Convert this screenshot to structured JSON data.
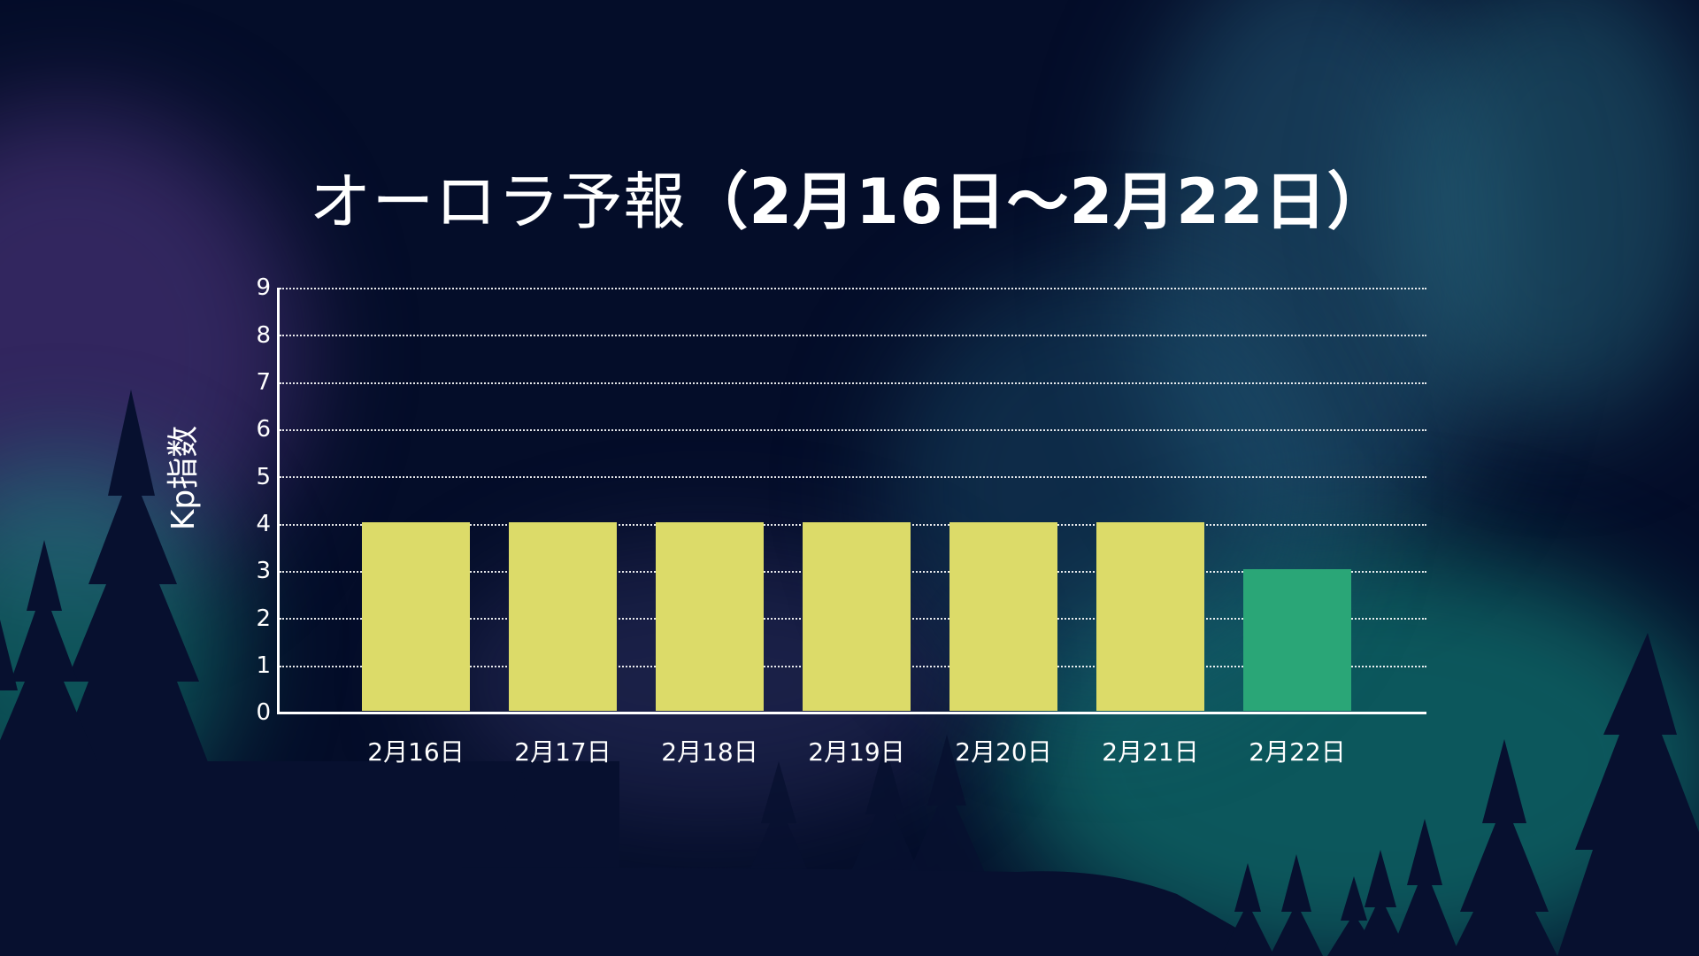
{
  "title": {
    "prefix": "オーロラ予報",
    "range": "（2月16日〜2月22日）"
  },
  "colors": {
    "background": "#040d29",
    "bar_normal": "#dcdb69",
    "bar_low": "#2aa677",
    "axis": "#ffffff"
  },
  "chart_data": {
    "type": "bar",
    "title": "オーロラ予報（2月16日〜2月22日）",
    "xlabel": "",
    "ylabel": "Kp指数",
    "categories": [
      "2月16日",
      "2月17日",
      "2月18日",
      "2月19日",
      "2月20日",
      "2月21日",
      "2月22日"
    ],
    "values": [
      4,
      4,
      4,
      4,
      4,
      4,
      3
    ],
    "bar_colors": [
      "#dcdb69",
      "#dcdb69",
      "#dcdb69",
      "#dcdb69",
      "#dcdb69",
      "#dcdb69",
      "#2aa677"
    ],
    "ylim": [
      0,
      9
    ],
    "yticks": [
      "0",
      "1",
      "2",
      "3",
      "4",
      "5",
      "6",
      "7",
      "8",
      "9"
    ],
    "grid": "horizontal dotted",
    "legend": "none"
  }
}
